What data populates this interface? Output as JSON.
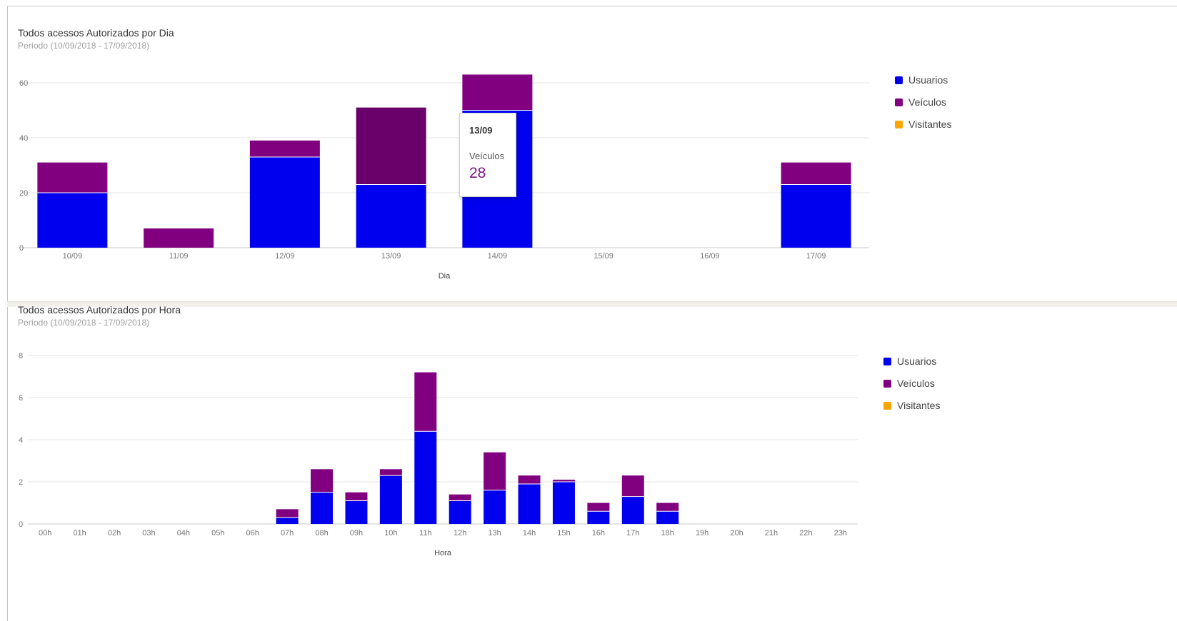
{
  "colors": {
    "Usuarios": "#0000ee",
    "Veiculos": "#800080",
    "Veiculos_hover": "#6a006a",
    "Visitantes": "#ffa500",
    "grid": "#e6e6e6",
    "axis": "#c8c8c8"
  },
  "legend": [
    "Usuarios",
    "Veículos",
    "Visitantes"
  ],
  "chart_data": [
    {
      "type": "bar",
      "stacked": true,
      "title": "Todos acessos Autorizados por Dia",
      "subtitle": "Período (10/09/2018 - 17/09/2018)",
      "xlabel": "Dia",
      "ylabel": "",
      "ylim": [
        0,
        60
      ],
      "yticks": [
        0,
        20,
        40,
        60
      ],
      "grid": true,
      "legend_position": "right",
      "categories": [
        "10/09",
        "11/09",
        "12/09",
        "13/09",
        "14/09",
        "15/09",
        "16/09",
        "17/09"
      ],
      "series": [
        {
          "name": "Usuarios",
          "values": [
            20,
            0,
            33,
            23,
            50,
            0,
            0,
            23
          ]
        },
        {
          "name": "Veículos",
          "values": [
            11,
            7,
            6,
            28,
            13,
            0,
            0,
            8
          ]
        },
        {
          "name": "Visitantes",
          "values": [
            0,
            0,
            0,
            0,
            0,
            0,
            0,
            0
          ]
        }
      ],
      "tooltip": {
        "category": "13/09",
        "series": "Veículos",
        "value": "28"
      }
    },
    {
      "type": "bar",
      "stacked": true,
      "title": "Todos acessos Autorizados por Hora",
      "subtitle": "Período (10/09/2018 - 17/09/2018)",
      "xlabel": "Hora",
      "ylabel": "",
      "ylim": [
        0,
        8
      ],
      "yticks": [
        0,
        2,
        4,
        6,
        8
      ],
      "grid": true,
      "legend_position": "right",
      "categories": [
        "00h",
        "01h",
        "02h",
        "03h",
        "04h",
        "05h",
        "06h",
        "07h",
        "08h",
        "09h",
        "10h",
        "11h",
        "12h",
        "13h",
        "14h",
        "15h",
        "16h",
        "17h",
        "18h",
        "19h",
        "20h",
        "21h",
        "22h",
        "23h"
      ],
      "series": [
        {
          "name": "Usuarios",
          "values": [
            0,
            0,
            0,
            0,
            0,
            0,
            0,
            0.3,
            1.5,
            1.1,
            2.3,
            4.4,
            1.1,
            1.6,
            1.9,
            2.0,
            0.6,
            1.3,
            0.6,
            0,
            0,
            0,
            0,
            0
          ]
        },
        {
          "name": "Veículos",
          "values": [
            0,
            0,
            0,
            0,
            0,
            0,
            0,
            0.4,
            1.1,
            0.4,
            0.3,
            2.8,
            0.3,
            1.8,
            0.4,
            0.1,
            0.4,
            1.0,
            0.4,
            0,
            0,
            0,
            0,
            0
          ]
        },
        {
          "name": "Visitantes",
          "values": [
            0,
            0,
            0,
            0,
            0,
            0,
            0,
            0,
            0,
            0,
            0,
            0,
            0,
            0,
            0,
            0,
            0,
            0,
            0,
            0,
            0,
            0,
            0,
            0
          ]
        }
      ]
    }
  ]
}
